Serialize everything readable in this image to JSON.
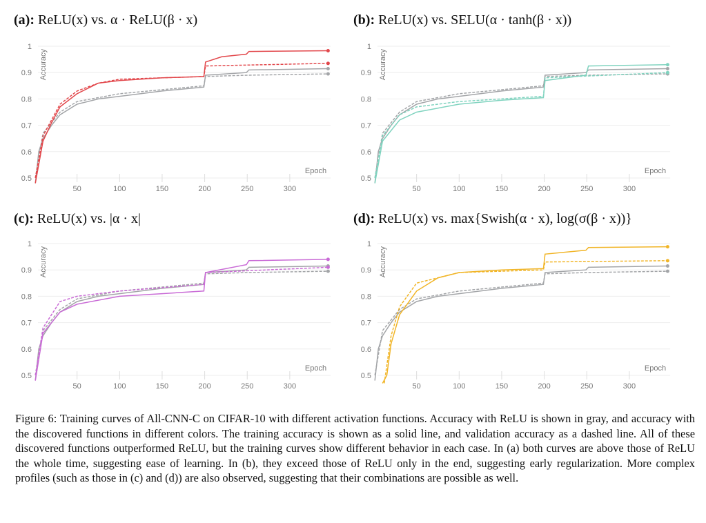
{
  "colors": {
    "relu": "#a3a5a8",
    "a": "#e2474b",
    "b": "#7fd3bf",
    "c": "#c96bd6",
    "d": "#f1b527"
  },
  "caption": "Figure 6: Training curves of All-CNN-C on CIFAR-10 with different activation functions. Accuracy with ReLU is shown in gray, and accuracy with the discovered functions in different colors. The training accuracy is shown as a solid line, and validation accuracy as a dashed line. All of these discovered functions outperformed ReLU, but the training curves show different behavior in each case. In (a) both curves are above those of ReLU the whole time, suggesting ease of learning. In (b), they exceed those of ReLU only in the end, suggesting early regularization. More complex profiles (such as those in (c) and (d)) are also observed, suggesting that their combinations are possible as well.",
  "chart_data": [
    {
      "type": "line",
      "label": "(a):",
      "title": "ReLU(x) vs. α · ReLU(β · x)",
      "xlabel": "Epoch",
      "ylabel": "Accuracy",
      "xticks": [
        50,
        100,
        150,
        200,
        250,
        300
      ],
      "yticks": [
        0.5,
        0.6,
        0.7,
        0.8,
        0.9,
        1
      ],
      "xlim": [
        0,
        348
      ],
      "ylim": [
        0.5,
        1
      ],
      "grid": true,
      "color_key": "a",
      "series": [
        {
          "role": "relu-train",
          "style": "solid",
          "points": [
            [
              1,
              0.48
            ],
            [
              5,
              0.6
            ],
            [
              10,
              0.65
            ],
            [
              20,
              0.7
            ],
            [
              30,
              0.74
            ],
            [
              50,
              0.78
            ],
            [
              75,
              0.8
            ],
            [
              100,
              0.81
            ],
            [
              150,
              0.83
            ],
            [
              199,
              0.845
            ],
            [
              201,
              0.89
            ],
            [
              249,
              0.9
            ],
            [
              252,
              0.91
            ],
            [
              345,
              0.915
            ]
          ]
        },
        {
          "role": "relu-val",
          "style": "dashed",
          "points": [
            [
              1,
              0.5
            ],
            [
              10,
              0.67
            ],
            [
              30,
              0.75
            ],
            [
              50,
              0.79
            ],
            [
              100,
              0.82
            ],
            [
              150,
              0.835
            ],
            [
              199,
              0.85
            ],
            [
              201,
              0.885
            ],
            [
              250,
              0.89
            ],
            [
              345,
              0.895
            ]
          ]
        },
        {
          "role": "fn-train",
          "style": "solid",
          "points": [
            [
              1,
              0.48
            ],
            [
              10,
              0.64
            ],
            [
              20,
              0.71
            ],
            [
              30,
              0.77
            ],
            [
              50,
              0.82
            ],
            [
              75,
              0.86
            ],
            [
              100,
              0.87
            ],
            [
              150,
              0.88
            ],
            [
              199,
              0.885
            ],
            [
              201,
              0.94
            ],
            [
              220,
              0.96
            ],
            [
              249,
              0.97
            ],
            [
              252,
              0.98
            ],
            [
              345,
              0.983
            ]
          ]
        },
        {
          "role": "fn-val",
          "style": "dashed",
          "points": [
            [
              1,
              0.5
            ],
            [
              10,
              0.66
            ],
            [
              30,
              0.78
            ],
            [
              50,
              0.83
            ],
            [
              75,
              0.86
            ],
            [
              100,
              0.875
            ],
            [
              150,
              0.88
            ],
            [
              199,
              0.885
            ],
            [
              201,
              0.925
            ],
            [
              345,
              0.935
            ]
          ]
        }
      ]
    },
    {
      "type": "line",
      "label": "(b):",
      "title": "ReLU(x) vs. SELU(α · tanh(β · x))",
      "xlabel": "Epoch",
      "ylabel": "Accuracy",
      "xticks": [
        50,
        100,
        150,
        200,
        250,
        300
      ],
      "yticks": [
        0.5,
        0.6,
        0.7,
        0.8,
        0.9,
        1
      ],
      "xlim": [
        0,
        348
      ],
      "ylim": [
        0.5,
        1
      ],
      "grid": true,
      "color_key": "b",
      "series": [
        {
          "role": "relu-train",
          "style": "solid",
          "points": [
            [
              1,
              0.48
            ],
            [
              5,
              0.6
            ],
            [
              10,
              0.65
            ],
            [
              20,
              0.7
            ],
            [
              30,
              0.74
            ],
            [
              50,
              0.78
            ],
            [
              75,
              0.8
            ],
            [
              100,
              0.81
            ],
            [
              150,
              0.83
            ],
            [
              199,
              0.845
            ],
            [
              201,
              0.89
            ],
            [
              249,
              0.9
            ],
            [
              252,
              0.91
            ],
            [
              345,
              0.915
            ]
          ]
        },
        {
          "role": "relu-val",
          "style": "dashed",
          "points": [
            [
              1,
              0.5
            ],
            [
              10,
              0.67
            ],
            [
              30,
              0.75
            ],
            [
              50,
              0.79
            ],
            [
              100,
              0.82
            ],
            [
              150,
              0.835
            ],
            [
              199,
              0.85
            ],
            [
              201,
              0.885
            ],
            [
              250,
              0.89
            ],
            [
              345,
              0.895
            ]
          ]
        },
        {
          "role": "fn-train",
          "style": "solid",
          "points": [
            [
              1,
              0.48
            ],
            [
              10,
              0.64
            ],
            [
              30,
              0.72
            ],
            [
              50,
              0.75
            ],
            [
              100,
              0.78
            ],
            [
              150,
              0.795
            ],
            [
              199,
              0.805
            ],
            [
              201,
              0.87
            ],
            [
              249,
              0.89
            ],
            [
              252,
              0.925
            ],
            [
              345,
              0.93
            ]
          ]
        },
        {
          "role": "fn-val",
          "style": "dashed",
          "points": [
            [
              1,
              0.5
            ],
            [
              10,
              0.66
            ],
            [
              30,
              0.74
            ],
            [
              50,
              0.77
            ],
            [
              100,
              0.79
            ],
            [
              199,
              0.81
            ],
            [
              201,
              0.88
            ],
            [
              345,
              0.9
            ]
          ]
        }
      ]
    },
    {
      "type": "line",
      "label": "(c):",
      "title": "ReLU(x) vs. |α · x|",
      "xlabel": "Epoch",
      "ylabel": "Accuracy",
      "xticks": [
        50,
        100,
        150,
        200,
        250,
        300
      ],
      "yticks": [
        0.5,
        0.6,
        0.7,
        0.8,
        0.9,
        1
      ],
      "xlim": [
        0,
        348
      ],
      "ylim": [
        0.5,
        1
      ],
      "grid": true,
      "color_key": "c",
      "series": [
        {
          "role": "relu-train",
          "style": "solid",
          "points": [
            [
              1,
              0.48
            ],
            [
              5,
              0.6
            ],
            [
              10,
              0.65
            ],
            [
              20,
              0.7
            ],
            [
              30,
              0.74
            ],
            [
              50,
              0.78
            ],
            [
              75,
              0.8
            ],
            [
              100,
              0.81
            ],
            [
              150,
              0.83
            ],
            [
              199,
              0.845
            ],
            [
              201,
              0.89
            ],
            [
              249,
              0.9
            ],
            [
              252,
              0.91
            ],
            [
              345,
              0.915
            ]
          ]
        },
        {
          "role": "relu-val",
          "style": "dashed",
          "points": [
            [
              1,
              0.5
            ],
            [
              10,
              0.67
            ],
            [
              30,
              0.75
            ],
            [
              50,
              0.79
            ],
            [
              100,
              0.82
            ],
            [
              150,
              0.835
            ],
            [
              199,
              0.85
            ],
            [
              201,
              0.885
            ],
            [
              250,
              0.89
            ],
            [
              345,
              0.895
            ]
          ]
        },
        {
          "role": "fn-train",
          "style": "solid",
          "points": [
            [
              1,
              0.48
            ],
            [
              10,
              0.66
            ],
            [
              30,
              0.74
            ],
            [
              50,
              0.77
            ],
            [
              100,
              0.8
            ],
            [
              150,
              0.81
            ],
            [
              199,
              0.82
            ],
            [
              201,
              0.89
            ],
            [
              249,
              0.92
            ],
            [
              252,
              0.935
            ],
            [
              345,
              0.94
            ]
          ]
        },
        {
          "role": "fn-val",
          "style": "dashed",
          "points": [
            [
              1,
              0.5
            ],
            [
              10,
              0.68
            ],
            [
              30,
              0.78
            ],
            [
              50,
              0.8
            ],
            [
              100,
              0.82
            ],
            [
              199,
              0.845
            ],
            [
              201,
              0.89
            ],
            [
              345,
              0.91
            ]
          ]
        }
      ]
    },
    {
      "type": "line",
      "label": "(d):",
      "title": "ReLU(x) vs. max{Swish(α · x), log(σ(β · x))}",
      "xlabel": "Epoch",
      "ylabel": "Accuracy",
      "xticks": [
        50,
        100,
        150,
        200,
        250,
        300
      ],
      "yticks": [
        0.5,
        0.6,
        0.7,
        0.8,
        0.9,
        1
      ],
      "xlim": [
        0,
        348
      ],
      "ylim": [
        0.5,
        1
      ],
      "grid": true,
      "color_key": "d",
      "series": [
        {
          "role": "relu-train",
          "style": "solid",
          "points": [
            [
              1,
              0.48
            ],
            [
              5,
              0.6
            ],
            [
              10,
              0.65
            ],
            [
              20,
              0.7
            ],
            [
              30,
              0.74
            ],
            [
              50,
              0.78
            ],
            [
              75,
              0.8
            ],
            [
              100,
              0.81
            ],
            [
              150,
              0.83
            ],
            [
              199,
              0.845
            ],
            [
              201,
              0.89
            ],
            [
              249,
              0.9
            ],
            [
              252,
              0.91
            ],
            [
              345,
              0.915
            ]
          ]
        },
        {
          "role": "relu-val",
          "style": "dashed",
          "points": [
            [
              1,
              0.5
            ],
            [
              10,
              0.67
            ],
            [
              30,
              0.75
            ],
            [
              50,
              0.79
            ],
            [
              100,
              0.82
            ],
            [
              150,
              0.835
            ],
            [
              199,
              0.85
            ],
            [
              201,
              0.885
            ],
            [
              250,
              0.89
            ],
            [
              345,
              0.895
            ]
          ]
        },
        {
          "role": "fn-train",
          "style": "solid",
          "points": [
            [
              10,
              0.45
            ],
            [
              15,
              0.5
            ],
            [
              20,
              0.62
            ],
            [
              30,
              0.73
            ],
            [
              50,
              0.82
            ],
            [
              75,
              0.87
            ],
            [
              100,
              0.89
            ],
            [
              150,
              0.9
            ],
            [
              199,
              0.905
            ],
            [
              201,
              0.96
            ],
            [
              249,
              0.975
            ],
            [
              252,
              0.985
            ],
            [
              345,
              0.988
            ]
          ]
        },
        {
          "role": "fn-val",
          "style": "dashed",
          "points": [
            [
              12,
              0.45
            ],
            [
              20,
              0.65
            ],
            [
              30,
              0.76
            ],
            [
              50,
              0.85
            ],
            [
              100,
              0.89
            ],
            [
              199,
              0.9
            ],
            [
              201,
              0.93
            ],
            [
              345,
              0.935
            ]
          ]
        }
      ]
    }
  ]
}
